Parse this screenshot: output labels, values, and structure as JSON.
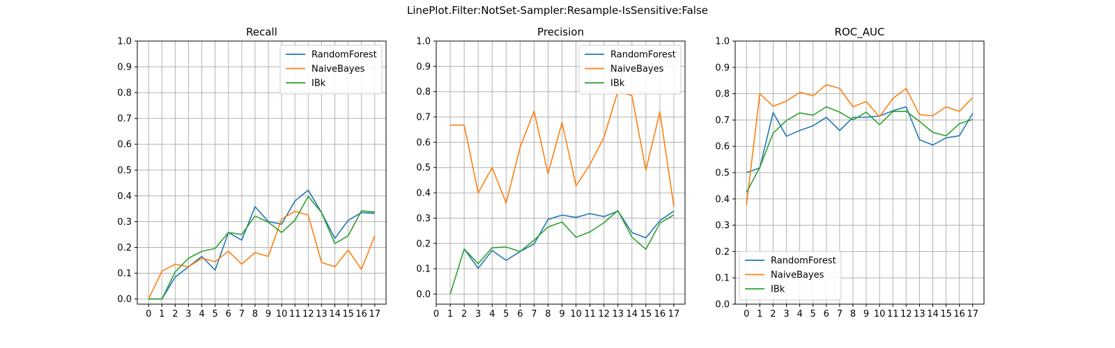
{
  "suptitle": "LinePlot.Filter:NotSet-Sampler:Resample-IsSensitive:False",
  "colors": {
    "RandomForest": "#1f77b4",
    "NaiveBayes": "#ff7f0e",
    "IBk": "#2ca02c",
    "grid": "#b0b0b0"
  },
  "chart_data": [
    {
      "type": "line",
      "title": "Recall",
      "xlabel": "",
      "ylabel": "",
      "x_ticks": [
        0,
        1,
        2,
        3,
        4,
        5,
        6,
        7,
        8,
        9,
        10,
        11,
        12,
        13,
        14,
        15,
        16,
        17
      ],
      "y_ticks": [
        "0.0",
        "0.1",
        "0.2",
        "0.3",
        "0.4",
        "0.5",
        "0.6",
        "0.7",
        "0.8",
        "0.9",
        "1.0"
      ],
      "xlim": [
        -0.85,
        17.85
      ],
      "ylim": [
        -0.02,
        1.0
      ],
      "grid": true,
      "legend": "top-right",
      "series": [
        {
          "name": "RandomForest",
          "x": [
            0,
            1,
            2,
            3,
            4,
            5,
            6,
            7,
            8,
            9,
            10,
            11,
            12,
            13,
            14,
            15,
            16,
            17
          ],
          "values": [
            0.0,
            0.0,
            0.085,
            0.125,
            0.165,
            0.112,
            0.258,
            0.228,
            0.358,
            0.3,
            0.29,
            0.38,
            0.422,
            0.335,
            0.235,
            0.305,
            0.335,
            0.332
          ]
        },
        {
          "name": "NaiveBayes",
          "x": [
            0,
            1,
            2,
            3,
            4,
            5,
            6,
            7,
            8,
            9,
            10,
            11,
            12,
            13,
            14,
            15,
            16,
            17
          ],
          "values": [
            0.0,
            0.108,
            0.135,
            0.125,
            0.158,
            0.145,
            0.185,
            0.135,
            0.18,
            0.165,
            0.31,
            0.34,
            0.325,
            0.142,
            0.125,
            0.19,
            0.115,
            0.245
          ]
        },
        {
          "name": "IBk",
          "x": [
            0,
            1,
            2,
            3,
            4,
            5,
            6,
            7,
            8,
            9,
            10,
            11,
            12,
            13,
            14,
            15,
            16,
            17
          ],
          "values": [
            0.0,
            0.0,
            0.105,
            0.158,
            0.185,
            0.196,
            0.258,
            0.25,
            0.322,
            0.298,
            0.258,
            0.305,
            0.398,
            0.335,
            0.215,
            0.245,
            0.342,
            0.337
          ]
        }
      ]
    },
    {
      "type": "line",
      "title": "Precision",
      "xlabel": "",
      "ylabel": "",
      "x_ticks": [
        0,
        1,
        2,
        3,
        4,
        5,
        6,
        7,
        8,
        9,
        10,
        11,
        12,
        13,
        14,
        15,
        16,
        17
      ],
      "y_ticks": [
        "0.0",
        "0.1",
        "0.2",
        "0.3",
        "0.4",
        "0.5",
        "0.6",
        "0.7",
        "0.8",
        "0.9",
        "1.0"
      ],
      "xlim": [
        0.0,
        17.8
      ],
      "ylim": [
        -0.04,
        1.0
      ],
      "grid": true,
      "legend": "top-right",
      "series": [
        {
          "name": "RandomForest",
          "x": [
            2,
            3,
            4,
            5,
            6,
            7,
            8,
            9,
            10,
            11,
            12,
            13,
            14,
            15,
            16,
            17
          ],
          "values": [
            0.178,
            0.102,
            0.172,
            0.133,
            0.168,
            0.198,
            0.295,
            0.312,
            0.303,
            0.318,
            0.306,
            0.328,
            0.243,
            0.222,
            0.29,
            0.328
          ]
        },
        {
          "name": "NaiveBayes",
          "x": [
            1,
            2,
            3,
            4,
            5,
            6,
            7,
            8,
            9,
            10,
            11,
            12,
            13,
            14,
            15,
            16,
            17
          ],
          "values": [
            0.668,
            0.668,
            0.4,
            0.5,
            0.36,
            0.58,
            0.723,
            0.476,
            0.678,
            0.428,
            0.512,
            0.62,
            0.802,
            0.784,
            0.49,
            0.72,
            0.345
          ]
        },
        {
          "name": "IBk",
          "x": [
            1,
            2,
            3,
            4,
            5,
            6,
            7,
            8,
            9,
            10,
            11,
            12,
            13,
            14,
            15,
            16,
            17
          ],
          "values": [
            0.0,
            0.178,
            0.12,
            0.183,
            0.186,
            0.168,
            0.213,
            0.265,
            0.285,
            0.224,
            0.246,
            0.282,
            0.33,
            0.225,
            0.177,
            0.28,
            0.313
          ]
        }
      ]
    },
    {
      "type": "line",
      "title": "ROC_AUC",
      "xlabel": "",
      "ylabel": "",
      "x_ticks": [
        0,
        1,
        2,
        3,
        4,
        5,
        6,
        7,
        8,
        9,
        10,
        11,
        12,
        13,
        14,
        15,
        16,
        17
      ],
      "y_ticks": [
        "0.0",
        "0.1",
        "0.2",
        "0.3",
        "0.4",
        "0.5",
        "0.6",
        "0.7",
        "0.8",
        "0.9",
        "1.0"
      ],
      "xlim": [
        -0.85,
        17.85
      ],
      "ylim": [
        0.0,
        1.0
      ],
      "grid": true,
      "legend": "bottom-left",
      "series": [
        {
          "name": "RandomForest",
          "x": [
            0,
            1,
            2,
            3,
            4,
            5,
            6,
            7,
            8,
            9,
            10,
            11,
            12,
            13,
            14,
            15,
            16,
            17
          ],
          "values": [
            0.5,
            0.518,
            0.728,
            0.638,
            0.66,
            0.678,
            0.71,
            0.66,
            0.71,
            0.71,
            0.715,
            0.735,
            0.75,
            0.625,
            0.605,
            0.632,
            0.64,
            0.725
          ]
        },
        {
          "name": "NaiveBayes",
          "x": [
            0,
            1,
            2,
            3,
            4,
            5,
            6,
            7,
            8,
            9,
            10,
            11,
            12,
            13,
            14,
            15,
            16,
            17
          ],
          "values": [
            0.378,
            0.8,
            0.752,
            0.772,
            0.805,
            0.792,
            0.834,
            0.82,
            0.75,
            0.77,
            0.712,
            0.782,
            0.82,
            0.72,
            0.716,
            0.75,
            0.733,
            0.785
          ]
        },
        {
          "name": "IBk",
          "x": [
            0,
            1,
            2,
            3,
            4,
            5,
            6,
            7,
            8,
            9,
            10,
            11,
            12,
            13,
            14,
            15,
            16,
            17
          ],
          "values": [
            0.425,
            0.52,
            0.65,
            0.698,
            0.727,
            0.718,
            0.75,
            0.73,
            0.7,
            0.73,
            0.682,
            0.732,
            0.733,
            0.695,
            0.653,
            0.64,
            0.686,
            0.702
          ]
        }
      ]
    }
  ]
}
